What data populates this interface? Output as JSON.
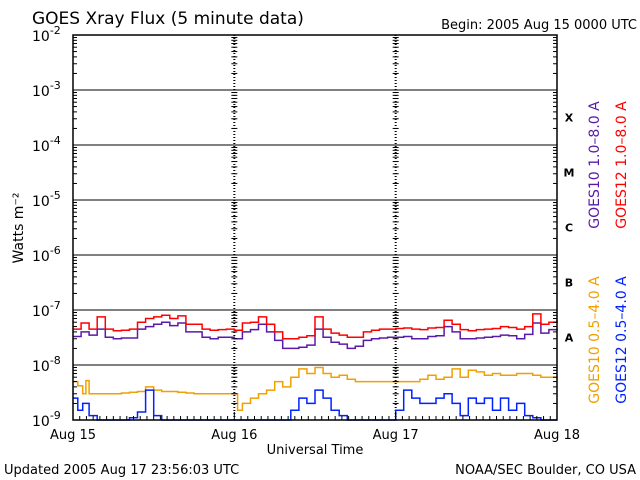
{
  "header": {
    "title": "GOES Xray Flux (5 minute data)",
    "begin": "Begin:  2005 Aug 15 0000 UTC"
  },
  "footer": {
    "updated": "Updated 2005 Aug 17 23:56:03 UTC",
    "credit": "NOAA/SEC Boulder, CO USA"
  },
  "colors": {
    "goes10_long": "#5a1aa8",
    "goes12_long": "#ff0000",
    "goes10_short": "#f0a000",
    "goes12_short": "#0022ff"
  },
  "chart_data": {
    "type": "line",
    "title": "GOES Xray Flux (5 minute data)",
    "xlabel": "Universal Time",
    "ylabel": "Watts m⁻²",
    "yscale": "log",
    "ylim": [
      1e-09,
      0.01
    ],
    "xlim": [
      "2005-08-15",
      "2005-08-18"
    ],
    "x_ticks": [
      "Aug 15",
      "Aug 16",
      "Aug 17",
      "Aug 18"
    ],
    "y_ticks": [
      {
        "value": 0.01,
        "base": "10",
        "exp": "-2"
      },
      {
        "value": 0.001,
        "base": "10",
        "exp": "-3"
      },
      {
        "value": 0.0001,
        "base": "10",
        "exp": "-4"
      },
      {
        "value": 1e-05,
        "base": "10",
        "exp": "-5"
      },
      {
        "value": 1e-06,
        "base": "10",
        "exp": "-6"
      },
      {
        "value": 1e-07,
        "base": "10",
        "exp": "-7"
      },
      {
        "value": 1e-08,
        "base": "10",
        "exp": "-8"
      },
      {
        "value": 1e-09,
        "base": "10",
        "exp": "-9"
      }
    ],
    "flare_classes": [
      {
        "label": "X",
        "value": 0.000316
      },
      {
        "label": "M",
        "value": 3.16e-05
      },
      {
        "label": "C",
        "value": 3.16e-06
      },
      {
        "label": "B",
        "value": 3.16e-07
      },
      {
        "label": "A",
        "value": 3.16e-08
      }
    ],
    "legend": {
      "placement": "right",
      "items": [
        {
          "name": "GOES10 1.0–8.0 A",
          "color": "#5a1aa8"
        },
        {
          "name": "GOES12 1.0–8.0 A",
          "color": "#ff0000"
        },
        {
          "name": "GOES10 0.5–4.0 A",
          "color": "#f0a000"
        },
        {
          "name": "GOES12 0.5–4.0 A",
          "color": "#0022ff"
        }
      ]
    },
    "series": [
      {
        "name": "GOES10 1.0–8.0 A",
        "color": "#5a1aa8",
        "x": [
          0,
          0.05,
          0.1,
          0.15,
          0.2,
          0.25,
          0.3,
          0.35,
          0.4,
          0.45,
          0.5,
          0.55,
          0.6,
          0.65,
          0.7,
          0.75,
          0.8,
          0.85,
          0.9,
          0.95,
          1.0,
          1.05,
          1.1,
          1.15,
          1.2,
          1.25,
          1.3,
          1.35,
          1.4,
          1.45,
          1.5,
          1.55,
          1.6,
          1.65,
          1.7,
          1.75,
          1.8,
          1.85,
          1.9,
          1.95,
          2.0,
          2.05,
          2.1,
          2.15,
          2.2,
          2.25,
          2.3,
          2.35,
          2.4,
          2.45,
          2.5,
          2.55,
          2.6,
          2.65,
          2.7,
          2.75,
          2.8,
          2.85,
          2.9,
          2.95,
          3.0
        ],
        "y": [
          3.3e-08,
          4e-08,
          3.5e-08,
          4.5e-08,
          3.2e-08,
          3e-08,
          3.1e-08,
          3.1e-08,
          4.5e-08,
          5e-08,
          5.5e-08,
          6e-08,
          5.2e-08,
          5.8e-08,
          4e-08,
          4e-08,
          3.2e-08,
          3e-08,
          3.2e-08,
          3.2e-08,
          3e-08,
          4e-08,
          4.4e-08,
          5.5e-08,
          4e-08,
          2.8e-08,
          2e-08,
          2e-08,
          2.1e-08,
          2.3e-08,
          4.5e-08,
          3.2e-08,
          2.6e-08,
          2.4e-08,
          2e-08,
          2.2e-08,
          2.8e-08,
          3e-08,
          3.1e-08,
          3.2e-08,
          3.2e-08,
          3.3e-08,
          3e-08,
          3e-08,
          3.3e-08,
          3.4e-08,
          5e-08,
          4e-08,
          3e-08,
          3e-08,
          3.1e-08,
          3.2e-08,
          3.3e-08,
          3.5e-08,
          3.4e-08,
          3e-08,
          3.6e-08,
          5.8e-08,
          3.8e-08,
          4.4e-08,
          4.6e-08
        ]
      },
      {
        "name": "GOES12 1.0–8.0 A",
        "color": "#ff0000",
        "x": [
          0,
          0.05,
          0.1,
          0.15,
          0.2,
          0.25,
          0.3,
          0.35,
          0.4,
          0.45,
          0.5,
          0.55,
          0.6,
          0.65,
          0.7,
          0.75,
          0.8,
          0.85,
          0.9,
          0.95,
          1.0,
          1.05,
          1.1,
          1.15,
          1.2,
          1.25,
          1.3,
          1.35,
          1.4,
          1.45,
          1.5,
          1.55,
          1.6,
          1.65,
          1.7,
          1.75,
          1.8,
          1.85,
          1.9,
          1.95,
          2.0,
          2.05,
          2.1,
          2.15,
          2.2,
          2.25,
          2.3,
          2.35,
          2.4,
          2.45,
          2.5,
          2.55,
          2.6,
          2.65,
          2.7,
          2.75,
          2.8,
          2.85,
          2.9,
          2.95,
          3.0
        ],
        "y": [
          4.5e-08,
          5.8e-08,
          4.5e-08,
          7.5e-08,
          4.5e-08,
          4.2e-08,
          4.3e-08,
          4.5e-08,
          6e-08,
          7e-08,
          7.5e-08,
          8e-08,
          7e-08,
          7.8e-08,
          5.5e-08,
          5.5e-08,
          4.5e-08,
          4.3e-08,
          4.4e-08,
          4.5e-08,
          4.3e-08,
          5.8e-08,
          6e-08,
          7.5e-08,
          5.5e-08,
          4e-08,
          3e-08,
          3e-08,
          3.2e-08,
          3.4e-08,
          7.5e-08,
          4.5e-08,
          3.8e-08,
          3.5e-08,
          3.2e-08,
          3.2e-08,
          4e-08,
          4.3e-08,
          4.5e-08,
          4.5e-08,
          4.6e-08,
          4.7e-08,
          4.5e-08,
          4.4e-08,
          4.7e-08,
          4.8e-08,
          6.5e-08,
          5.5e-08,
          4.4e-08,
          4.2e-08,
          4.4e-08,
          4.5e-08,
          4.6e-08,
          5e-08,
          4.8e-08,
          4.5e-08,
          5e-08,
          8.5e-08,
          5.5e-08,
          6e-08,
          6.5e-08
        ]
      },
      {
        "name": "GOES10 0.5–4.0 A",
        "color": "#f0a000",
        "x": [
          0,
          0.03,
          0.06,
          0.08,
          0.1,
          0.15,
          0.2,
          0.25,
          0.3,
          0.35,
          0.4,
          0.45,
          0.5,
          0.55,
          0.6,
          0.65,
          0.7,
          0.75,
          0.8,
          0.85,
          0.9,
          0.95,
          1.0,
          1.02,
          1.05,
          1.1,
          1.15,
          1.2,
          1.25,
          1.3,
          1.35,
          1.4,
          1.45,
          1.5,
          1.55,
          1.6,
          1.65,
          1.7,
          1.75,
          1.8,
          1.85,
          1.9,
          1.95,
          2.0,
          2.05,
          2.1,
          2.15,
          2.2,
          2.25,
          2.3,
          2.35,
          2.4,
          2.45,
          2.5,
          2.55,
          2.6,
          2.65,
          2.7,
          2.75,
          2.8,
          2.85,
          2.9,
          2.95,
          3.0
        ],
        "y": [
          5e-09,
          4.2e-09,
          3e-09,
          5.2e-09,
          3e-09,
          3e-09,
          3e-09,
          3e-09,
          3.1e-09,
          3.2e-09,
          3.3e-09,
          4e-09,
          3.5e-09,
          3.3e-09,
          3.3e-09,
          3.2e-09,
          3.1e-09,
          3e-09,
          3e-09,
          3e-09,
          3e-09,
          3e-09,
          3e-09,
          1.5e-09,
          2e-09,
          2.5e-09,
          3e-09,
          3.5e-09,
          5e-09,
          4e-09,
          6e-09,
          8.5e-09,
          7e-09,
          9e-09,
          7e-09,
          6e-09,
          6.5e-09,
          5.5e-09,
          5e-09,
          5e-09,
          5e-09,
          5e-09,
          5e-09,
          5e-09,
          5e-09,
          5e-09,
          5.5e-09,
          6.5e-09,
          5.5e-09,
          6e-09,
          8.5e-09,
          6e-09,
          8e-09,
          7.5e-09,
          6.5e-09,
          7e-09,
          6.5e-09,
          6.5e-09,
          7e-09,
          7e-09,
          6.5e-09,
          6e-09,
          6e-09,
          5.5e-09
        ]
      },
      {
        "name": "GOES12 0.5–4.0 A",
        "color": "#0022ff",
        "x": [
          0,
          0.03,
          0.06,
          0.1,
          0.15,
          0.2,
          0.25,
          0.3,
          0.35,
          0.4,
          0.45,
          0.5,
          0.55,
          0.6,
          0.65,
          0.7,
          0.75,
          0.8,
          0.85,
          0.9,
          0.95,
          1.0,
          1.05,
          1.1,
          1.15,
          1.2,
          1.25,
          1.3,
          1.35,
          1.4,
          1.45,
          1.5,
          1.55,
          1.6,
          1.65,
          1.7,
          1.75,
          1.8,
          1.85,
          1.9,
          1.95,
          2.0,
          2.05,
          2.1,
          2.15,
          2.2,
          2.25,
          2.3,
          2.35,
          2.4,
          2.45,
          2.5,
          2.55,
          2.6,
          2.65,
          2.7,
          2.75,
          2.8,
          2.85,
          2.9,
          2.95,
          3.0
        ],
        "y": [
          2.5e-09,
          1.5e-09,
          2e-09,
          1.2e-09,
          1e-09,
          1e-09,
          1e-09,
          1e-09,
          1.1e-09,
          1.4e-09,
          3.5e-09,
          1.2e-09,
          1e-09,
          1e-09,
          1e-09,
          1e-09,
          1e-09,
          1e-09,
          1e-09,
          1e-09,
          1e-09,
          1e-09,
          1e-09,
          1e-09,
          1e-09,
          1e-09,
          1e-09,
          1e-09,
          1.5e-09,
          2.5e-09,
          2e-09,
          3.5e-09,
          2.5e-09,
          1.5e-09,
          1.2e-09,
          1e-09,
          1e-09,
          1e-09,
          1e-09,
          1e-09,
          1e-09,
          1.5e-09,
          3.5e-09,
          2.5e-09,
          2e-09,
          2e-09,
          2.5e-09,
          3e-09,
          2e-09,
          1.2e-09,
          2.5e-09,
          2e-09,
          2.5e-09,
          1.5e-09,
          2.5e-09,
          1.5e-09,
          2e-09,
          1.2e-09,
          1.1e-09,
          1e-09,
          1e-09,
          1e-09
        ]
      }
    ]
  }
}
